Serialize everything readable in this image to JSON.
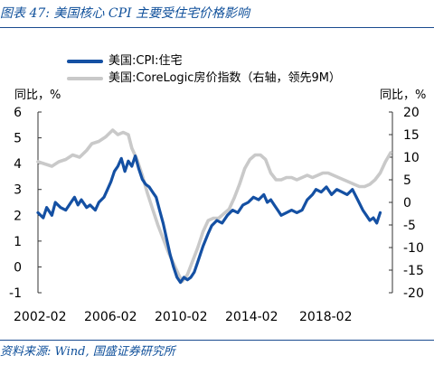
{
  "figure": {
    "title": "图表 47: 美国核心 CPI 主要受住宅价格影响",
    "source": "资料来源: Wind, 国盛证券研究所",
    "left_unit": "同比，%",
    "right_unit": "同比，%",
    "accent_color": "#0e4f9a"
  },
  "chart_data": {
    "type": "line",
    "legend_position": "top-left",
    "grid": false,
    "xlabel": "",
    "x_tick_labels": [
      "2002-02",
      "2006-02",
      "2010-02",
      "2014-02",
      "2018-02"
    ],
    "x_range": [
      2002.0,
      2022.4
    ],
    "left_axis": {
      "label": "同比，%",
      "range": [
        -1,
        6
      ],
      "ticks": [
        -1,
        0,
        1,
        2,
        3,
        4,
        5,
        6
      ]
    },
    "right_axis": {
      "label": "同比，%",
      "range": [
        -20,
        20
      ],
      "ticks": [
        -20,
        -15,
        -10,
        -5,
        0,
        5,
        10,
        15,
        20
      ]
    },
    "series": [
      {
        "name": "美国:CPI:住宅",
        "axis": "left",
        "color": "#1450a3",
        "points": [
          [
            2002.0,
            2.1
          ],
          [
            2002.3,
            1.9
          ],
          [
            2002.5,
            2.3
          ],
          [
            2002.8,
            2.0
          ],
          [
            2003.0,
            2.5
          ],
          [
            2003.3,
            2.3
          ],
          [
            2003.6,
            2.2
          ],
          [
            2003.9,
            2.5
          ],
          [
            2004.1,
            2.7
          ],
          [
            2004.3,
            2.4
          ],
          [
            2004.5,
            2.6
          ],
          [
            2004.8,
            2.3
          ],
          [
            2005.0,
            2.4
          ],
          [
            2005.3,
            2.2
          ],
          [
            2005.5,
            2.5
          ],
          [
            2005.8,
            2.7
          ],
          [
            2006.0,
            3.0
          ],
          [
            2006.2,
            3.3
          ],
          [
            2006.4,
            3.7
          ],
          [
            2006.6,
            3.9
          ],
          [
            2006.8,
            4.2
          ],
          [
            2007.0,
            3.7
          ],
          [
            2007.2,
            4.1
          ],
          [
            2007.4,
            3.9
          ],
          [
            2007.6,
            4.3
          ],
          [
            2007.8,
            3.8
          ],
          [
            2008.0,
            3.4
          ],
          [
            2008.2,
            3.2
          ],
          [
            2008.4,
            3.1
          ],
          [
            2008.6,
            2.9
          ],
          [
            2008.8,
            2.7
          ],
          [
            2009.0,
            2.2
          ],
          [
            2009.2,
            1.7
          ],
          [
            2009.4,
            1.1
          ],
          [
            2009.6,
            0.5
          ],
          [
            2009.8,
            0.0
          ],
          [
            2010.0,
            -0.4
          ],
          [
            2010.2,
            -0.6
          ],
          [
            2010.4,
            -0.4
          ],
          [
            2010.6,
            -0.5
          ],
          [
            2010.8,
            -0.4
          ],
          [
            2011.0,
            -0.2
          ],
          [
            2011.2,
            0.2
          ],
          [
            2011.5,
            0.8
          ],
          [
            2011.8,
            1.3
          ],
          [
            2012.0,
            1.6
          ],
          [
            2012.3,
            1.8
          ],
          [
            2012.6,
            1.7
          ],
          [
            2012.9,
            2.0
          ],
          [
            2013.2,
            2.2
          ],
          [
            2013.5,
            2.1
          ],
          [
            2013.8,
            2.4
          ],
          [
            2014.1,
            2.5
          ],
          [
            2014.4,
            2.7
          ],
          [
            2014.7,
            2.6
          ],
          [
            2015.0,
            2.8
          ],
          [
            2015.2,
            2.5
          ],
          [
            2015.4,
            2.6
          ],
          [
            2015.6,
            2.4
          ],
          [
            2015.8,
            2.2
          ],
          [
            2016.0,
            2.0
          ],
          [
            2016.3,
            2.1
          ],
          [
            2016.6,
            2.2
          ],
          [
            2016.9,
            2.1
          ],
          [
            2017.2,
            2.2
          ],
          [
            2017.5,
            2.6
          ],
          [
            2017.8,
            2.8
          ],
          [
            2018.0,
            3.0
          ],
          [
            2018.3,
            2.9
          ],
          [
            2018.6,
            3.1
          ],
          [
            2018.9,
            2.8
          ],
          [
            2019.2,
            3.0
          ],
          [
            2019.5,
            2.9
          ],
          [
            2019.8,
            2.8
          ],
          [
            2020.1,
            3.0
          ],
          [
            2020.4,
            2.6
          ],
          [
            2020.7,
            2.2
          ],
          [
            2020.9,
            2.0
          ],
          [
            2021.1,
            1.8
          ],
          [
            2021.3,
            1.9
          ],
          [
            2021.5,
            1.7
          ],
          [
            2021.7,
            2.1
          ]
        ]
      },
      {
        "name": "美国:CoreLogic房价指数（右轴，领先9M）",
        "axis": "right",
        "color": "#c9c9c9",
        "points": [
          [
            2002.0,
            9.0
          ],
          [
            2002.4,
            8.5
          ],
          [
            2002.8,
            8.0
          ],
          [
            2003.2,
            9.0
          ],
          [
            2003.6,
            9.5
          ],
          [
            2004.0,
            10.5
          ],
          [
            2004.4,
            10.0
          ],
          [
            2004.8,
            11.5
          ],
          [
            2005.1,
            13.0
          ],
          [
            2005.5,
            13.5
          ],
          [
            2005.9,
            14.5
          ],
          [
            2006.3,
            16.0
          ],
          [
            2006.6,
            15.0
          ],
          [
            2006.9,
            15.5
          ],
          [
            2007.2,
            15.0
          ],
          [
            2007.4,
            12.0
          ],
          [
            2007.7,
            9.5
          ],
          [
            2008.0,
            6.0
          ],
          [
            2008.3,
            2.0
          ],
          [
            2008.6,
            -1.5
          ],
          [
            2008.9,
            -5.0
          ],
          [
            2009.2,
            -8.0
          ],
          [
            2009.5,
            -11.0
          ],
          [
            2009.8,
            -13.5
          ],
          [
            2010.1,
            -16.0
          ],
          [
            2010.3,
            -17.5
          ],
          [
            2010.6,
            -16.0
          ],
          [
            2010.9,
            -13.0
          ],
          [
            2011.2,
            -10.0
          ],
          [
            2011.5,
            -6.5
          ],
          [
            2011.8,
            -4.0
          ],
          [
            2012.1,
            -3.5
          ],
          [
            2012.4,
            -3.5
          ],
          [
            2012.7,
            -2.5
          ],
          [
            2013.0,
            -1.5
          ],
          [
            2013.3,
            1.0
          ],
          [
            2013.6,
            4.0
          ],
          [
            2013.9,
            7.5
          ],
          [
            2014.2,
            9.5
          ],
          [
            2014.5,
            10.5
          ],
          [
            2014.8,
            10.5
          ],
          [
            2015.1,
            9.5
          ],
          [
            2015.4,
            6.5
          ],
          [
            2015.7,
            5.0
          ],
          [
            2016.0,
            5.0
          ],
          [
            2016.3,
            5.5
          ],
          [
            2016.6,
            5.5
          ],
          [
            2016.9,
            5.0
          ],
          [
            2017.2,
            5.5
          ],
          [
            2017.5,
            6.0
          ],
          [
            2017.8,
            5.5
          ],
          [
            2018.1,
            6.0
          ],
          [
            2018.4,
            6.5
          ],
          [
            2018.7,
            6.5
          ],
          [
            2019.0,
            6.0
          ],
          [
            2019.3,
            5.5
          ],
          [
            2019.6,
            5.0
          ],
          [
            2019.9,
            4.5
          ],
          [
            2020.2,
            4.0
          ],
          [
            2020.5,
            3.5
          ],
          [
            2020.8,
            3.5
          ],
          [
            2021.1,
            4.0
          ],
          [
            2021.4,
            5.0
          ],
          [
            2021.7,
            6.5
          ],
          [
            2022.0,
            9.0
          ],
          [
            2022.3,
            11.0
          ]
        ]
      }
    ]
  }
}
